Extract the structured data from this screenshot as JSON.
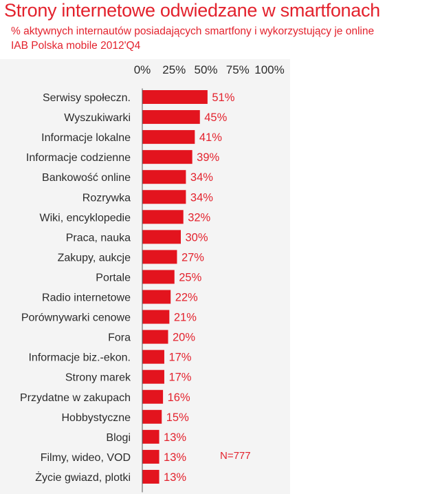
{
  "header": {
    "title": "Strony internetowe odwiedzane w smartfonach",
    "subtitle": "% aktywnych internautów posiadających smartfony i wykorzystujący je online",
    "source": "IAB Polska mobile 2012'Q4"
  },
  "note": "N=777",
  "colors": {
    "accent": "#e3222d",
    "bar": "#e3141e",
    "text": "#2b2b2b",
    "panel": "#f4f4f4"
  },
  "chart_data": {
    "type": "bar",
    "orientation": "horizontal",
    "title": "Strony internetowe odwiedzane w smartfonach",
    "xlim": [
      0,
      100
    ],
    "xticks": [
      "0%",
      "25%",
      "50%",
      "75%",
      "100%"
    ],
    "xtick_values": [
      0,
      25,
      50,
      75,
      100
    ],
    "axis_position": "top",
    "grid": false,
    "legend": "none",
    "categories": [
      "Serwisy społeczn.",
      "Wyszukiwarki",
      "Informacje lokalne",
      "Informacje codzienne",
      "Bankowość online",
      "Rozrywka",
      "Wiki, encyklopedie",
      "Praca, nauka",
      "Zakupy, aukcje",
      "Portale",
      "Radio internetowe",
      "Porównywarki cenowe",
      "Fora",
      "Informacje biz.-ekon.",
      "Strony marek",
      "Przydatne w zakupach",
      "Hobbystyczne",
      "Blogi",
      "Filmy, wideo, VOD",
      "Życie gwiazd, plotki"
    ],
    "values": [
      51,
      45,
      41,
      39,
      34,
      34,
      32,
      30,
      27,
      25,
      22,
      21,
      20,
      17,
      17,
      16,
      15,
      13,
      13,
      13
    ],
    "value_labels": [
      "51%",
      "45%",
      "41%",
      "39%",
      "34%",
      "34%",
      "32%",
      "30%",
      "27%",
      "25%",
      "22%",
      "21%",
      "20%",
      "17%",
      "17%",
      "16%",
      "15%",
      "13%",
      "13%",
      "13%"
    ]
  }
}
